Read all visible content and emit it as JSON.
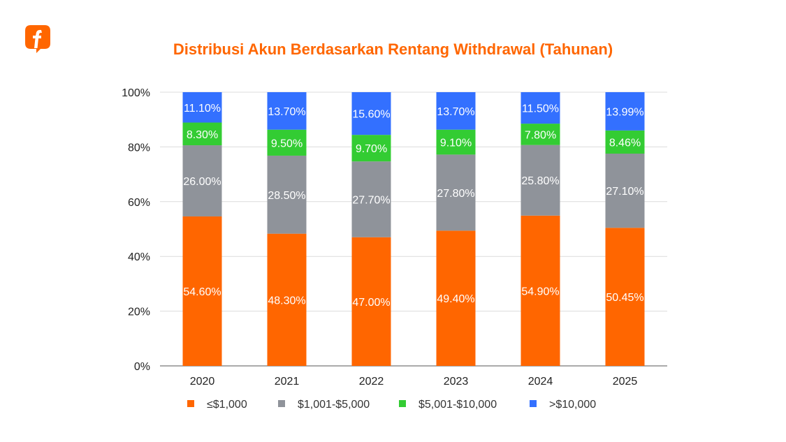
{
  "logo": {
    "icon": "brand-f-speech-bubble-icon",
    "color": "#FF6600"
  },
  "chart_data": {
    "type": "bar",
    "stacked": true,
    "title": "Distribusi Akun Berdasarkan Rentang Withdrawal (Tahunan)",
    "xlabel": "",
    "ylabel": "",
    "categories": [
      "2020",
      "2021",
      "2022",
      "2023",
      "2024",
      "2025"
    ],
    "ylim": [
      0,
      100
    ],
    "yticks": [
      "0%",
      "20%",
      "40%",
      "60%",
      "80%",
      "100%"
    ],
    "grid": true,
    "legend_position": "bottom",
    "series": [
      {
        "name": "≤$1,000",
        "color": "#FF6600",
        "values": [
          54.6,
          48.3,
          47.0,
          49.4,
          54.9,
          50.45
        ],
        "labels": [
          "54.60%",
          "48.30%",
          "47.00%",
          "49.40%",
          "54.90%",
          "50.45%"
        ]
      },
      {
        "name": "$1,001-$5,000",
        "color": "#8F939A",
        "values": [
          26.0,
          28.5,
          27.7,
          27.8,
          25.8,
          27.1
        ],
        "labels": [
          "26.00%",
          "28.50%",
          "27.70%",
          "27.80%",
          "25.80%",
          "27.10%"
        ]
      },
      {
        "name": "$5,001-$10,000",
        "color": "#33CC33",
        "values": [
          8.3,
          9.5,
          9.7,
          9.1,
          7.8,
          8.46
        ],
        "labels": [
          "8.30%",
          "9.50%",
          "9.70%",
          "9.10%",
          "7.80%",
          "8.46%"
        ]
      },
      {
        "name": ">$10,000",
        "color": "#3370FF",
        "values": [
          11.1,
          13.7,
          15.6,
          13.7,
          11.5,
          13.99
        ],
        "labels": [
          "11.10%",
          "13.70%",
          "15.60%",
          "13.70%",
          "11.50%",
          "13.99%"
        ]
      }
    ]
  }
}
